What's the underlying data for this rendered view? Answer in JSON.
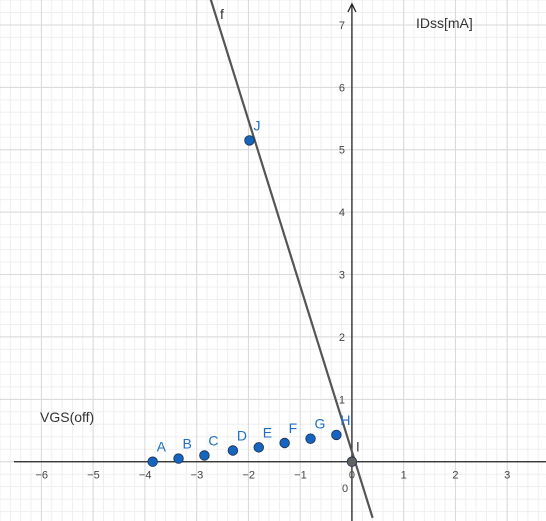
{
  "chart_data": {
    "type": "scatter",
    "xlabel": "VGS(off)",
    "ylabel": "IDss[mA]",
    "xlim": [
      -6.8,
      3.75
    ],
    "ylim": [
      -0.95,
      7.4
    ],
    "grid": true,
    "x_ticks": [
      -6,
      -5,
      -4,
      -3,
      -2,
      -1,
      0,
      1,
      2,
      3
    ],
    "y_ticks": [
      1,
      2,
      3,
      4,
      5,
      6,
      7
    ],
    "origin_label": "0",
    "line": {
      "name": "f",
      "x1": -2.8,
      "y1": 7.6,
      "x2": 0.4,
      "y2": -0.9,
      "color": "#555555"
    },
    "points": [
      {
        "label": "A",
        "x": -3.85,
        "y": 0.0
      },
      {
        "label": "B",
        "x": -3.35,
        "y": 0.05
      },
      {
        "label": "C",
        "x": -2.85,
        "y": 0.1
      },
      {
        "label": "D",
        "x": -2.3,
        "y": 0.18
      },
      {
        "label": "E",
        "x": -1.8,
        "y": 0.23
      },
      {
        "label": "F",
        "x": -1.3,
        "y": 0.3
      },
      {
        "label": "G",
        "x": -0.8,
        "y": 0.37
      },
      {
        "label": "H",
        "x": -0.3,
        "y": 0.43
      },
      {
        "label": "J",
        "x": -1.98,
        "y": 5.15
      },
      {
        "label": "I",
        "x": 0.0,
        "y": 0.0,
        "gray": true
      }
    ],
    "colors": {
      "point": "#1565c0",
      "point_gray": "#616161",
      "point_label": "#1e6fc4",
      "axis": "#222222",
      "major_grid": "#d9d9d9",
      "minor_grid": "#efefef",
      "tick_text": "#444444"
    }
  }
}
